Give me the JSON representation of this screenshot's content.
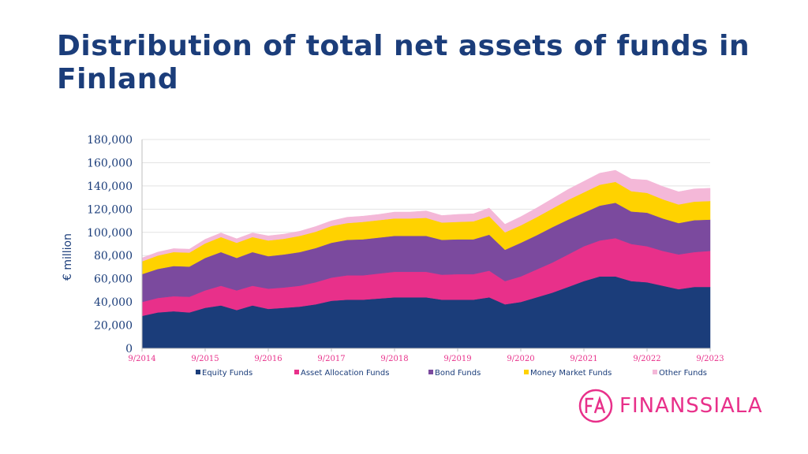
{
  "title": "Distribution of total net assets of funds in Finland",
  "brand": {
    "name": "FINANSSIALA",
    "mark": "FA",
    "color": "#e8308a"
  },
  "chart_data": {
    "type": "area",
    "stacked": true,
    "title": "Distribution of total net assets of funds in Finland",
    "ylabel": "€ million",
    "xlabel": "",
    "ylim": [
      0,
      180000
    ],
    "yticks": [
      "0",
      "20,000",
      "40,000",
      "60,000",
      "80,000",
      "100,000",
      "120,000",
      "140,000",
      "160,000",
      "180,000"
    ],
    "xticks": [
      "9/2014",
      "9/2015",
      "9/2016",
      "9/2017",
      "9/2018",
      "9/2019",
      "9/2020",
      "9/2021",
      "9/2022",
      "9/2023"
    ],
    "grid": true,
    "legend": "bottom",
    "x": [
      "9/2014",
      "12/2014",
      "3/2015",
      "6/2015",
      "9/2015",
      "12/2015",
      "3/2016",
      "6/2016",
      "9/2016",
      "12/2016",
      "3/2017",
      "6/2017",
      "9/2017",
      "12/2017",
      "3/2018",
      "6/2018",
      "9/2018",
      "12/2018",
      "3/2019",
      "6/2019",
      "9/2019",
      "12/2019",
      "3/2020",
      "6/2020",
      "9/2020",
      "12/2020",
      "3/2021",
      "6/2021",
      "9/2021",
      "12/2021",
      "3/2022",
      "6/2022",
      "9/2022",
      "12/2022",
      "3/2023",
      "6/2023",
      "9/2023"
    ],
    "series": [
      {
        "name": "Equity Funds",
        "color": "#1b3d7a",
        "values": [
          28000,
          31000,
          32000,
          31000,
          35000,
          37000,
          33000,
          37000,
          34000,
          35000,
          36000,
          38000,
          41000,
          42000,
          42000,
          43000,
          44000,
          44000,
          44000,
          42000,
          42000,
          42000,
          44000,
          38000,
          40000,
          44000,
          48000,
          53000,
          58000,
          62000,
          62000,
          58000,
          57000,
          54000,
          51000,
          53000,
          53000
        ]
      },
      {
        "name": "Asset Allocation Funds",
        "color": "#e8308a",
        "values": [
          12000,
          12500,
          13000,
          13500,
          15000,
          17000,
          17000,
          17000,
          17500,
          17500,
          18000,
          19000,
          20000,
          21000,
          21000,
          21500,
          22000,
          22000,
          22000,
          21500,
          22000,
          22000,
          23000,
          20000,
          22000,
          24000,
          26000,
          28000,
          30000,
          31000,
          33000,
          32000,
          31000,
          30000,
          30000,
          30000,
          31000
        ]
      },
      {
        "name": "Bond Funds",
        "color": "#7b4a9e",
        "values": [
          24000,
          25000,
          26000,
          26000,
          28000,
          29000,
          28000,
          29000,
          28000,
          28500,
          29000,
          29500,
          30000,
          30500,
          31000,
          31000,
          31000,
          31000,
          31000,
          30000,
          30000,
          30000,
          31000,
          27000,
          29000,
          29500,
          30500,
          30000,
          29000,
          30000,
          30500,
          28000,
          29000,
          28000,
          27000,
          27500,
          27000
        ]
      },
      {
        "name": "Money Market Funds",
        "color": "#ffd200",
        "values": [
          11000,
          11500,
          12000,
          12000,
          12500,
          13000,
          13000,
          13000,
          13500,
          13500,
          14000,
          14000,
          14500,
          14500,
          15000,
          15000,
          15000,
          15000,
          15500,
          15000,
          15000,
          15500,
          16000,
          15000,
          15000,
          15500,
          16000,
          17000,
          17500,
          18000,
          18000,
          17500,
          17000,
          16500,
          16000,
          16000,
          16000
        ]
      },
      {
        "name": "Other Funds",
        "color": "#f4b8d8",
        "values": [
          3000,
          3000,
          3000,
          3000,
          3500,
          3500,
          3500,
          3500,
          4000,
          4000,
          4000,
          4500,
          4500,
          5000,
          5000,
          5000,
          5500,
          5500,
          6000,
          6000,
          6500,
          6500,
          7000,
          7000,
          7500,
          8000,
          8500,
          9000,
          9500,
          10000,
          10000,
          10500,
          11000,
          11000,
          11000,
          11000,
          11000
        ]
      }
    ]
  }
}
